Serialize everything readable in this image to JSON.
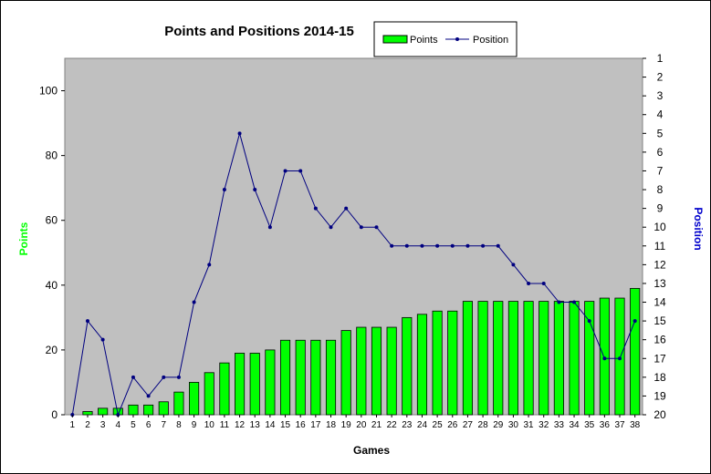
{
  "chart_data": {
    "type": "bar",
    "title": "Points and Positions 2014-15",
    "xlabel": "Games",
    "ylabel": "Points",
    "y2label": "Position",
    "categories": [
      "1",
      "2",
      "3",
      "4",
      "5",
      "6",
      "7",
      "8",
      "9",
      "10",
      "11",
      "12",
      "13",
      "14",
      "15",
      "16",
      "17",
      "18",
      "19",
      "20",
      "21",
      "22",
      "23",
      "24",
      "25",
      "26",
      "27",
      "28",
      "29",
      "30",
      "31",
      "32",
      "33",
      "34",
      "35",
      "36",
      "37",
      "38"
    ],
    "ylim": [
      0,
      110
    ],
    "yticks": [
      0,
      20,
      40,
      60,
      80,
      100
    ],
    "y2lim": [
      1,
      20
    ],
    "y2ticks": [
      1,
      2,
      3,
      4,
      5,
      6,
      7,
      8,
      9,
      10,
      11,
      12,
      13,
      14,
      15,
      16,
      17,
      18,
      19,
      20
    ],
    "y2_reversed": true,
    "grid": false,
    "legend_position": "top-right",
    "series": [
      {
        "name": "Points",
        "type": "bar",
        "axis": "left",
        "color": "#00ff00",
        "values": [
          0,
          1,
          2,
          2,
          3,
          3,
          4,
          7,
          10,
          13,
          16,
          19,
          19,
          20,
          23,
          23,
          23,
          23,
          26,
          27,
          27,
          27,
          30,
          31,
          32,
          32,
          35,
          35,
          35,
          35,
          35,
          35,
          35,
          35,
          35,
          36,
          36,
          39
        ]
      },
      {
        "name": "Position",
        "type": "line",
        "axis": "right",
        "color": "#000080",
        "values": [
          20,
          15,
          16,
          20,
          18,
          19,
          18,
          18,
          14,
          12,
          8,
          5,
          8,
          10,
          7,
          7,
          9,
          10,
          9,
          10,
          10,
          11,
          11,
          11,
          11,
          11,
          11,
          11,
          11,
          12,
          13,
          13,
          14,
          14,
          15,
          17,
          17,
          15
        ]
      }
    ],
    "colors": {
      "plot_background": "#c0c0c0",
      "bar_fill": "#00ff00",
      "line": "#000080",
      "points_label": "#00ff00",
      "position_label": "#0000cc"
    }
  }
}
